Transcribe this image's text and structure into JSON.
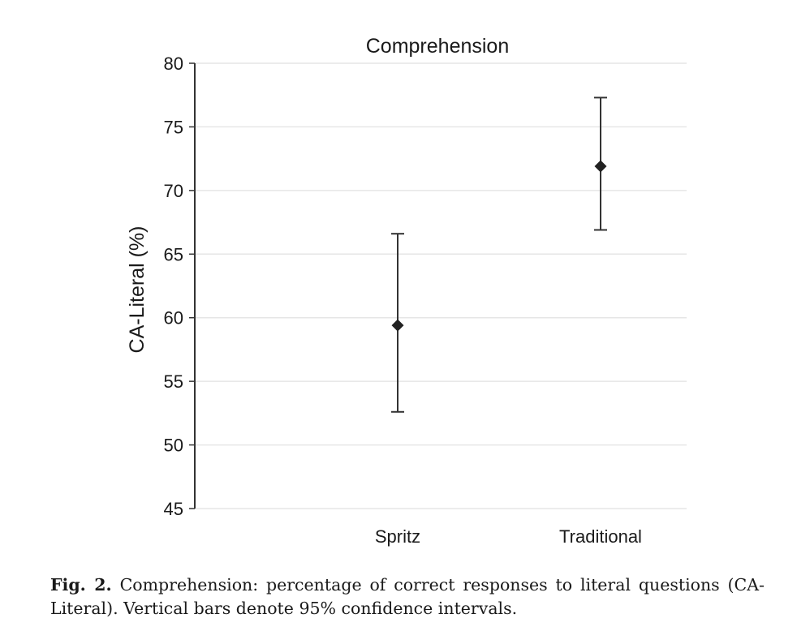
{
  "chart_data": {
    "type": "scatter",
    "title": "Comprehension",
    "xlabel": "",
    "ylabel": "CA-Literal (%)",
    "categories": [
      "Spritz",
      "Traditional"
    ],
    "series": [
      {
        "values": [
          59.4,
          71.9
        ],
        "ci_lower": [
          52.6,
          66.9
        ],
        "ci_upper": [
          66.6,
          77.3
        ]
      }
    ],
    "ylim": [
      45,
      80
    ],
    "yticks": [
      45,
      50,
      55,
      60,
      65,
      70,
      75,
      80
    ],
    "grid": true,
    "marker": "diamond",
    "colors": {
      "marker": "#222222",
      "grid": "#e6e6e6",
      "axis": "#333333"
    }
  },
  "caption": {
    "label": "Fig. 2.",
    "text": "Comprehension: percentage of correct responses to literal questions (CA-Literal). Vertical bars denote 95% confidence intervals."
  }
}
